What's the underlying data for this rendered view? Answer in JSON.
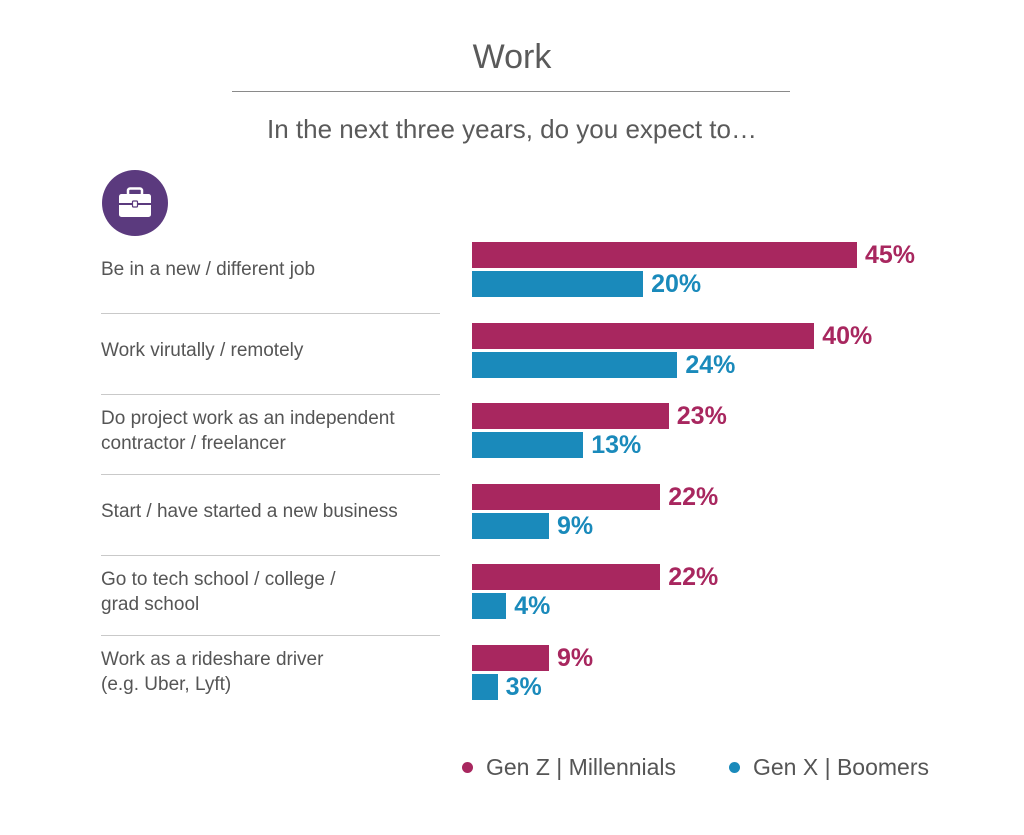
{
  "chart_data": {
    "type": "bar",
    "orientation": "horizontal",
    "title": "Work",
    "subtitle": "In the next three years, do you expect to…",
    "categories": [
      "Be in a new / different job",
      "Work virutally / remotely",
      "Do project work as an independent contractor / freelancer",
      "Start / have started a new business",
      "Go to tech school / college / grad school",
      "Work as a rideshare driver (e.g. Uber, Lyft)"
    ],
    "category_lines": [
      [
        "Be in a new / different job"
      ],
      [
        "Work virutally / remotely"
      ],
      [
        "Do project work as an independent",
        "contractor / freelancer"
      ],
      [
        "Start / have started a new business"
      ],
      [
        "Go to tech school / college /",
        "grad school"
      ],
      [
        "Work as a rideshare driver",
        "(e.g. Uber, Lyft)"
      ]
    ],
    "series": [
      {
        "name": "Gen Z | Millennials",
        "color": "#a8275f",
        "values": [
          45,
          40,
          23,
          22,
          22,
          9
        ],
        "labels": [
          "45%",
          "40%",
          "23%",
          "22%",
          "22%",
          "9%"
        ]
      },
      {
        "name": "Gen X | Boomers",
        "color": "#1a8abb",
        "values": [
          20,
          24,
          13,
          9,
          4,
          3
        ],
        "labels": [
          "20%",
          "24%",
          "13%",
          "9%",
          "4%",
          "3%"
        ]
      }
    ],
    "unit": "%",
    "xlim": [
      0,
      45
    ],
    "grid": false,
    "legend_position": "bottom-right"
  },
  "icon": "briefcase-icon",
  "legend": {
    "gen_z": "Gen Z  |  Millennials",
    "gen_x": "Gen X  |  Boomers"
  },
  "colors": {
    "magenta": "#a8275f",
    "blue": "#1a8abb",
    "purple": "#5b3a7e"
  }
}
